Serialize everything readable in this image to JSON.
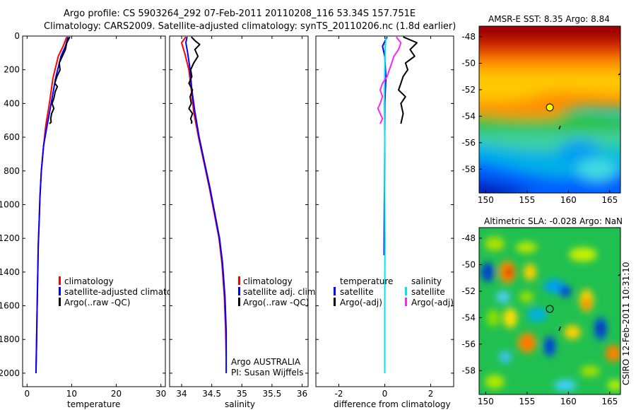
{
  "header": {
    "line1": "Argo profile: CS 5903264_292 07-Feb-2011 20110208_116 53.34S 157.751E",
    "line2": "Climatology: CARS2009. Satellite-adjusted climatology: synTS_20110206.nc (1.8d earlier)"
  },
  "colors": {
    "climatology": "#ff0000",
    "satellite": "#0000ff",
    "argo": "#000000",
    "salinity_sat": "#00e5ee",
    "salinity_argo": "#ff22ff"
  },
  "chart_data": [
    {
      "type": "line",
      "name": "temperature-profile",
      "xlabel": "temperature",
      "ylabel": "",
      "xlim": [
        -1,
        31
      ],
      "ylim": [
        2080,
        0
      ],
      "xticks": [
        "0",
        "10",
        "20",
        "30"
      ],
      "yticks": [
        "0",
        "200",
        "400",
        "600",
        "800",
        "1000",
        "1200",
        "1400",
        "1600",
        "1800",
        "2000"
      ],
      "legend": [
        "climatology",
        "satellite-adjusted climatology",
        "Argo(..raw -QC)"
      ],
      "series": [
        {
          "name": "climatology",
          "x": [
            8.9,
            8.1,
            7.0,
            5.8,
            5.0,
            4.2,
            3.7,
            3.2,
            2.9,
            2.7,
            2.5,
            2.4,
            2.3,
            2.2,
            2.1,
            2.0
          ],
          "y": [
            5,
            60,
            120,
            250,
            400,
            530,
            650,
            800,
            950,
            1100,
            1250,
            1400,
            1550,
            1700,
            1850,
            2000
          ]
        },
        {
          "name": "satellite-adjusted climatology",
          "x": [
            9.2,
            8.6,
            7.6,
            6.4,
            5.4,
            4.5,
            3.7,
            3.2,
            2.9,
            2.7,
            2.5,
            2.4,
            2.3,
            2.2,
            2.1,
            2.0
          ],
          "y": [
            5,
            60,
            120,
            250,
            400,
            530,
            650,
            800,
            950,
            1100,
            1250,
            1400,
            1550,
            1700,
            1850,
            2000
          ]
        },
        {
          "name": "Argo(..raw -QC)",
          "x": [
            9.6,
            9.3,
            8.9,
            8.6,
            7.9,
            7.2,
            7.4,
            6.7,
            6.2,
            6.8,
            6.3,
            6.0,
            5.6,
            6.0,
            5.5,
            5.3,
            5.4,
            5.0
          ],
          "y": [
            5,
            20,
            40,
            80,
            120,
            160,
            200,
            240,
            280,
            300,
            330,
            370,
            400,
            430,
            460,
            490,
            510,
            520
          ]
        }
      ]
    },
    {
      "type": "line",
      "name": "salinity-profile",
      "xlabel": "salinity",
      "ylabel": "",
      "xlim": [
        33.8,
        36.1
      ],
      "ylim": [
        2080,
        0
      ],
      "xticks": [
        "34",
        "34.5",
        "35",
        "35.5",
        "36"
      ],
      "legend": [
        "climatology",
        "satellite adj. clim.",
        "Argo(..raw -QC)"
      ],
      "annotation": [
        "Argo AUSTRALIA",
        "PI: Susan Wijffels"
      ],
      "series": [
        {
          "name": "climatology",
          "x": [
            34.07,
            34.0,
            34.05,
            34.12,
            34.16,
            34.2,
            34.28,
            34.37,
            34.46,
            34.54,
            34.62,
            34.67,
            34.71,
            34.73,
            34.74
          ],
          "y": [
            5,
            40,
            100,
            200,
            320,
            450,
            600,
            750,
            900,
            1050,
            1200,
            1350,
            1550,
            1750,
            1900
          ]
        },
        {
          "name": "satellite adj. clim.",
          "x": [
            34.09,
            34.07,
            34.1,
            34.14,
            34.17,
            34.22,
            34.29,
            34.38,
            34.47,
            34.55,
            34.63,
            34.68,
            34.72,
            34.74,
            34.74
          ],
          "y": [
            5,
            40,
            100,
            200,
            320,
            450,
            600,
            750,
            900,
            1050,
            1200,
            1350,
            1550,
            1750,
            2000
          ]
        },
        {
          "name": "Argo(..raw -QC)",
          "x": [
            34.16,
            34.23,
            34.3,
            34.22,
            34.27,
            34.2,
            34.15,
            34.17,
            34.12,
            34.18,
            34.14,
            34.16,
            34.12,
            34.18,
            34.15,
            34.17,
            34.16
          ],
          "y": [
            5,
            30,
            50,
            80,
            120,
            160,
            200,
            240,
            280,
            320,
            360,
            400,
            430,
            460,
            490,
            510,
            520
          ]
        }
      ]
    },
    {
      "type": "line",
      "name": "difference-profile",
      "xlabel": "difference from climatology",
      "ylabel": "",
      "xlim": [
        -3.0,
        3.0
      ],
      "ylim": [
        2080,
        0
      ],
      "xticks": [
        "-2",
        "0",
        "2"
      ],
      "legend_temperature": [
        "temperature",
        "satellite",
        "Argo(-adj)"
      ],
      "legend_salinity": [
        "salinity",
        "satellite",
        "Argo(-adj)"
      ],
      "series": [
        {
          "name": "temperature satellite",
          "x": [
            0.1,
            -0.1,
            0.0,
            0.05,
            0.0,
            0.0,
            0.0,
            -0.02,
            -0.03
          ],
          "y": [
            5,
            60,
            120,
            250,
            400,
            520,
            700,
            1000,
            1300
          ]
        },
        {
          "name": "temperature Argo(-adj)",
          "x": [
            0.8,
            1.4,
            1.1,
            1.3,
            0.9,
            1.0,
            0.8,
            0.7,
            0.6,
            0.9,
            0.7,
            0.8,
            0.7
          ],
          "y": [
            5,
            40,
            80,
            120,
            160,
            200,
            240,
            280,
            320,
            360,
            400,
            460,
            520
          ]
        },
        {
          "name": "salinity satellite",
          "x": [
            0.05,
            0.02,
            0.0,
            -0.02,
            0.0,
            -0.01,
            0.01,
            0.0,
            0.0
          ],
          "y": [
            5,
            80,
            200,
            400,
            600,
            800,
            1200,
            1600,
            2000
          ]
        },
        {
          "name": "salinity Argo(-adj)",
          "x": [
            0.5,
            0.7,
            0.6,
            0.4,
            0.3,
            0.2,
            0.1,
            -0.1,
            -0.2,
            -0.1,
            -0.2,
            -0.3,
            -0.2,
            -0.1,
            -0.2
          ],
          "y": [
            5,
            40,
            80,
            120,
            160,
            200,
            240,
            280,
            320,
            360,
            400,
            430,
            460,
            490,
            520
          ]
        }
      ]
    },
    {
      "type": "heatmap",
      "name": "amsre-sst-map",
      "title": "AMSR-E SST: 8.35 Argo: 8.84",
      "xticks": [
        "150",
        "155",
        "160",
        "165"
      ],
      "yticks": [
        "-48",
        "-50",
        "-52",
        "-54",
        "-56",
        "-58"
      ],
      "xlim": [
        149.2,
        166.3
      ],
      "ylim": [
        -59.8,
        -47.2
      ],
      "argo_position": {
        "lon": 157.751,
        "lat": -53.34
      }
    },
    {
      "type": "heatmap",
      "name": "altimetric-sla-map",
      "title": "Altimetric SLA: -0.028 Argo: NaN",
      "xticks": [
        "150",
        "155",
        "160",
        "165"
      ],
      "yticks": [
        "-48",
        "-50",
        "-52",
        "-54",
        "-56",
        "-58"
      ],
      "xlim": [
        149.2,
        166.3
      ],
      "ylim": [
        -59.8,
        -47.2
      ],
      "argo_position": {
        "lon": 157.751,
        "lat": -53.34
      }
    }
  ],
  "footer": {
    "credit": "CSIRO 12-Feb-2011 10:31:10"
  }
}
